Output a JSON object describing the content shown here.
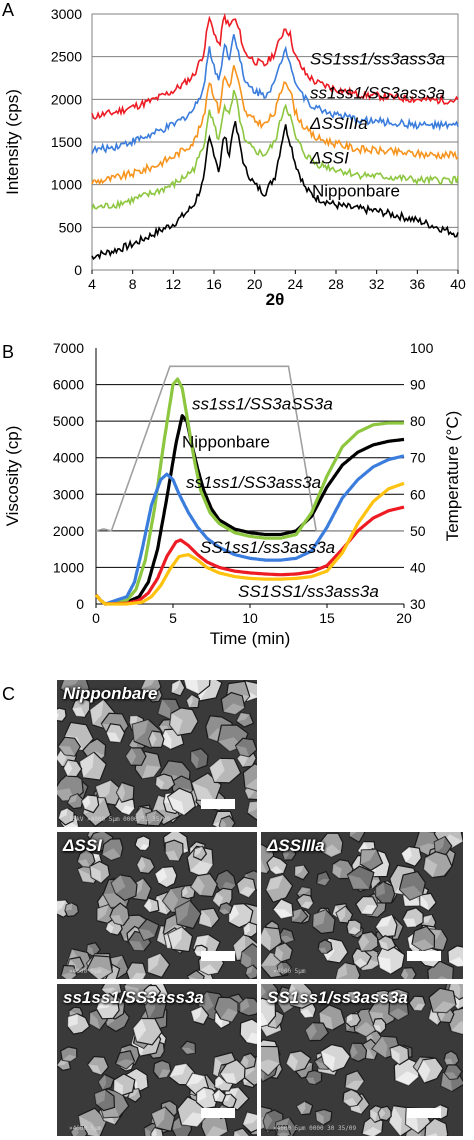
{
  "panels": {
    "a": "A",
    "b": "B",
    "c": "C"
  },
  "chart_data": [
    {
      "type": "line",
      "xlabel": "2θ",
      "ylabel": "Intensity (cps)",
      "xlim": [
        4,
        40
      ],
      "ylim": [
        0,
        3000
      ],
      "xticks": [
        4,
        8,
        12,
        16,
        20,
        24,
        28,
        32,
        36,
        40
      ],
      "yticks": [
        0,
        500,
        1000,
        1500,
        2000,
        2500,
        3000
      ],
      "grid": true,
      "series": [
        {
          "name": "Nipponbare",
          "color": "#000000",
          "x": [
            4,
            6,
            8,
            10,
            12,
            13,
            14,
            15,
            15.5,
            16,
            16.5,
            17,
            17.5,
            18,
            18.5,
            19,
            20,
            21,
            22,
            23,
            23.5,
            24,
            25,
            26,
            28,
            30,
            32,
            34,
            36,
            38,
            40
          ],
          "y": [
            160,
            220,
            300,
            420,
            540,
            640,
            760,
            1050,
            1550,
            1380,
            1150,
            1600,
            1350,
            1750,
            1500,
            1200,
            1000,
            900,
            1100,
            1700,
            1500,
            1250,
            950,
            850,
            760,
            720,
            690,
            640,
            580,
            500,
            420
          ]
        },
        {
          "name": "ΔSSI",
          "color": "#8dc63f",
          "x": [
            4,
            6,
            8,
            10,
            12,
            13,
            14,
            15,
            15.5,
            16,
            16.5,
            17,
            17.5,
            18,
            18.5,
            19,
            20,
            21,
            22,
            23,
            23.5,
            24,
            25,
            26,
            28,
            30,
            32,
            34,
            36,
            38,
            40
          ],
          "y": [
            720,
            760,
            820,
            900,
            1000,
            1080,
            1180,
            1450,
            1900,
            1700,
            1500,
            1950,
            1800,
            2100,
            1800,
            1500,
            1400,
            1350,
            1500,
            1950,
            1800,
            1550,
            1350,
            1250,
            1180,
            1120,
            1100,
            1080,
            1050,
            1050,
            1060
          ]
        },
        {
          "name": "ΔSSIIIa",
          "color": "#f7941d",
          "x": [
            4,
            6,
            8,
            10,
            12,
            13,
            14,
            15,
            15.5,
            16,
            16.5,
            17,
            17.5,
            18,
            18.5,
            19,
            20,
            21,
            22,
            23,
            23.5,
            24,
            25,
            26,
            28,
            30,
            32,
            34,
            36,
            38,
            40
          ],
          "y": [
            1030,
            1070,
            1130,
            1210,
            1330,
            1410,
            1500,
            1780,
            2230,
            2050,
            1850,
            2280,
            2150,
            2400,
            2150,
            1850,
            1750,
            1700,
            1850,
            2250,
            2100,
            1850,
            1650,
            1550,
            1480,
            1420,
            1400,
            1380,
            1360,
            1350,
            1350
          ]
        },
        {
          "name": "ss1ss1/SS3ass3a",
          "color": "#3b7ddd",
          "x": [
            4,
            6,
            8,
            10,
            12,
            13,
            14,
            15,
            15.5,
            16,
            16.5,
            17,
            17.5,
            18,
            18.5,
            19,
            20,
            21,
            22,
            23,
            23.5,
            24,
            25,
            26,
            28,
            30,
            32,
            34,
            36,
            38,
            40
          ],
          "y": [
            1400,
            1440,
            1510,
            1590,
            1700,
            1780,
            1880,
            2150,
            2600,
            2400,
            2200,
            2650,
            2500,
            2780,
            2500,
            2200,
            2100,
            2050,
            2200,
            2600,
            2450,
            2200,
            2000,
            1900,
            1820,
            1760,
            1740,
            1720,
            1700,
            1690,
            1690
          ]
        },
        {
          "name": "SS1ss1/ss3ass3a",
          "color": "#ed1c24",
          "x": [
            4,
            6,
            8,
            10,
            12,
            13,
            14,
            15,
            15.5,
            16,
            16.5,
            17,
            17.5,
            18,
            18.5,
            19,
            20,
            21,
            22,
            23,
            23.5,
            24,
            25,
            26,
            28,
            30,
            32,
            34,
            36,
            38,
            40
          ],
          "y": [
            1800,
            1840,
            1910,
            1990,
            2100,
            2180,
            2280,
            2550,
            2950,
            2800,
            2600,
            2980,
            2850,
            2950,
            2800,
            2550,
            2450,
            2400,
            2550,
            2850,
            2750,
            2500,
            2300,
            2200,
            2120,
            2060,
            2040,
            2020,
            2000,
            1990,
            1990
          ]
        }
      ],
      "annotations": [
        "SS1ss1/ss3ass3a",
        "ss1ss1/SS3ass3a",
        "ΔSSIIIa",
        "ΔSSI",
        "Nipponbare"
      ]
    },
    {
      "type": "line",
      "xlabel": "Time (min)",
      "ylabel": "Viscosity (cp)",
      "y2label": "Temperature (°C)",
      "xlim": [
        0,
        20
      ],
      "ylim": [
        0,
        7000
      ],
      "y2lim": [
        30,
        100
      ],
      "xticks": [
        0,
        5,
        10,
        15,
        20
      ],
      "yticks": [
        0,
        1000,
        2000,
        3000,
        4000,
        5000,
        6000,
        7000
      ],
      "y2ticks": [
        30,
        40,
        50,
        60,
        70,
        80,
        90,
        100
      ],
      "grid": true,
      "series": [
        {
          "name": "Temperature",
          "axis": "right",
          "color": "#a0a0a0",
          "x": [
            0,
            0.5,
            1,
            4.8,
            8.5,
            12.5,
            14.3,
            20
          ],
          "y": [
            50,
            50.5,
            50,
            95,
            95,
            95,
            50,
            50
          ]
        },
        {
          "name": "Nipponbare",
          "color": "#000000",
          "x": [
            0,
            0.3,
            0.6,
            2,
            2.8,
            3.4,
            4,
            4.6,
            5.2,
            5.6,
            5.9,
            6.2,
            6.6,
            7,
            7.5,
            8,
            9,
            10,
            11,
            12,
            13,
            14,
            15,
            16,
            17,
            18,
            19,
            20
          ],
          "y": [
            250,
            100,
            0,
            50,
            200,
            600,
            1500,
            2900,
            4400,
            5150,
            5000,
            4400,
            3700,
            3100,
            2600,
            2300,
            2050,
            1950,
            1900,
            1900,
            2000,
            2400,
            3200,
            3800,
            4150,
            4350,
            4450,
            4500
          ]
        },
        {
          "name": "ss1ss1/SS3aSS3a",
          "color": "#8dc63f",
          "x": [
            0,
            0.3,
            0.6,
            2,
            2.6,
            3.2,
            3.8,
            4.4,
            5,
            5.3,
            5.6,
            6,
            6.4,
            6.8,
            7.4,
            8,
            9,
            10,
            11,
            12,
            13,
            14,
            15,
            16,
            17,
            18,
            19,
            20
          ],
          "y": [
            250,
            100,
            0,
            100,
            400,
            1200,
            2600,
            4400,
            6000,
            6150,
            5900,
            4900,
            3900,
            3100,
            2500,
            2200,
            1950,
            1850,
            1800,
            1800,
            1900,
            2500,
            3500,
            4300,
            4700,
            4900,
            4950,
            4950
          ]
        },
        {
          "name": "ss1ss1/SS3ass3a",
          "color": "#3b7ddd",
          "x": [
            0,
            0.3,
            0.6,
            2,
            2.5,
            3,
            3.6,
            4.2,
            4.6,
            5,
            5.4,
            6,
            6.6,
            7.2,
            8,
            9,
            10,
            11,
            12,
            13,
            14,
            15,
            16,
            17,
            18,
            19,
            20
          ],
          "y": [
            250,
            100,
            0,
            200,
            600,
            1500,
            2700,
            3400,
            3550,
            3400,
            3000,
            2500,
            2100,
            1800,
            1550,
            1350,
            1250,
            1200,
            1200,
            1250,
            1450,
            2100,
            2900,
            3400,
            3750,
            3950,
            4050
          ]
        },
        {
          "name": "SS1ss1/ss3ass3a",
          "color": "#ed1c24",
          "x": [
            0,
            0.3,
            0.6,
            2,
            2.8,
            3.4,
            4,
            4.6,
            5.2,
            5.5,
            6,
            6.6,
            7.2,
            8,
            9,
            10,
            11,
            12,
            13,
            14,
            15,
            16,
            17,
            18,
            19,
            20
          ],
          "y": [
            250,
            100,
            0,
            20,
            100,
            300,
            700,
            1300,
            1700,
            1750,
            1600,
            1350,
            1150,
            1000,
            900,
            850,
            820,
            800,
            820,
            880,
            1050,
            1500,
            2000,
            2350,
            2550,
            2650
          ]
        },
        {
          "name": "SS1SS1/ss3ass3a",
          "color": "#ffc20e",
          "x": [
            0,
            0.3,
            0.6,
            2,
            3,
            3.6,
            4.2,
            4.8,
            5.4,
            6,
            6.6,
            7.2,
            8,
            9,
            10,
            11,
            12,
            13,
            14,
            15,
            16,
            17,
            18,
            19,
            20
          ],
          "y": [
            250,
            100,
            0,
            0,
            50,
            200,
            500,
            950,
            1300,
            1350,
            1200,
            1000,
            850,
            750,
            700,
            680,
            680,
            700,
            750,
            900,
            1400,
            2200,
            2800,
            3150,
            3300
          ]
        }
      ],
      "annotations": [
        "ss1ss1/SS3aSS3a",
        "Nipponbare",
        "ss1ss1/SS3ass3a",
        "SS1ss1/ss3ass3a",
        "SS1SS1/ss3ass3a"
      ]
    }
  ],
  "sem": {
    "images": [
      {
        "label": "Nipponbare",
        "meta": "15kV ×4000 5μm 0000 31 35/09"
      },
      {
        "label": "ΔSSI",
        "meta": "×4000 5μm"
      },
      {
        "label": "ΔSSIIIa",
        "meta": "×4000 5μm"
      },
      {
        "label": "ss1ss1/SS3ass3a",
        "meta": "×4000 5μm"
      },
      {
        "label": "SS1ss1/ss3ass3a",
        "meta": "×4000 5μm 0000 30 35/09"
      }
    ]
  }
}
